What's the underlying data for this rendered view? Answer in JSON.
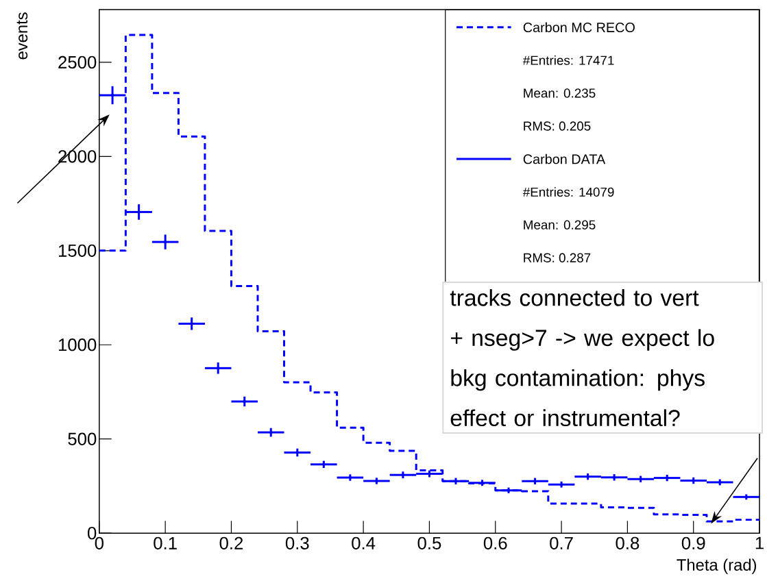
{
  "chart_data": {
    "type": "histogram",
    "bins": [
      0,
      0.04,
      0.08,
      0.12,
      0.16,
      0.2,
      0.24,
      0.28,
      0.32,
      0.36,
      0.4,
      0.44,
      0.48,
      0.52,
      0.56,
      0.6,
      0.64,
      0.68,
      0.72,
      0.76,
      0.8,
      0.84,
      0.88,
      0.92,
      0.96,
      1
    ],
    "series": [
      {
        "name": "Carbon MC RECO",
        "color": "#0000ff",
        "line_style": "dashed",
        "values": [
          1500,
          2645,
          2337,
          2106,
          1605,
          1312,
          1072,
          801,
          747,
          560,
          480,
          437,
          333,
          276,
          264,
          227,
          222,
          157,
          157,
          137,
          134,
          100,
          97,
          62,
          71
        ]
      },
      {
        "name": "Carbon DATA",
        "type": "scatter",
        "color": "#0000ff",
        "x": [
          0.02,
          0.06,
          0.1,
          0.14,
          0.18,
          0.22,
          0.26,
          0.3,
          0.34,
          0.38,
          0.42,
          0.46,
          0.5,
          0.54,
          0.58,
          0.62,
          0.66,
          0.7,
          0.74,
          0.78,
          0.82,
          0.86,
          0.9,
          0.94,
          0.98
        ],
        "values": [
          2325,
          1705,
          1546,
          1112,
          876,
          699,
          535,
          428,
          365,
          295,
          277,
          309,
          315,
          276,
          267,
          227,
          276,
          258,
          300,
          296,
          287,
          293,
          279,
          270,
          192
        ],
        "errors": [
          48,
          41,
          39,
          33,
          30,
          26,
          23,
          21,
          19,
          17,
          17,
          18,
          18,
          17,
          16,
          15,
          17,
          16,
          17,
          17,
          17,
          17,
          17,
          16,
          14
        ],
        "xerrors": [
          0.02,
          0.02,
          0.02,
          0.02,
          0.02,
          0.02,
          0.02,
          0.02,
          0.02,
          0.02,
          0.02,
          0.02,
          0.02,
          0.02,
          0.02,
          0.02,
          0.02,
          0.02,
          0.02,
          0.02,
          0.02,
          0.02,
          0.02,
          0.02,
          0.02
        ]
      }
    ],
    "xlim": [
      0,
      1
    ],
    "ylim": [
      0,
      2780
    ],
    "xticks": [
      0,
      0.1,
      0.2,
      0.3,
      0.4,
      0.5,
      0.6,
      0.7,
      0.8,
      0.9,
      1
    ],
    "yticks": [
      0,
      500,
      1000,
      1500,
      2000,
      2500
    ],
    "xlabel": "Theta (rad)",
    "ylabel": "events",
    "legend": "top right",
    "annotations": [
      "#Entries: 17471",
      "Mean: 0.235",
      "RMS: 0.205",
      "#Entries: 14079",
      "Mean: 0.295",
      "RMS: 0.287",
      "tracks connected to vert",
      "+ nseg>7 -> we expect lo",
      "bkg contamination: phys",
      "effect or instrumental?"
    ]
  }
}
